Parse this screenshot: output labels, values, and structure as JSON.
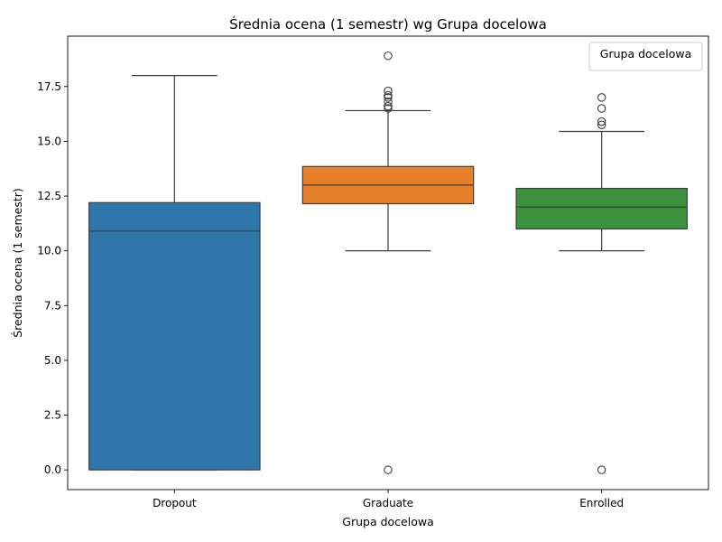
{
  "chart_data": {
    "type": "box",
    "title": "Średnia ocena (1 semestr) wg Grupa docelowa",
    "xlabel": "Grupa docelowa",
    "ylabel": "Średnia ocena (1 semestr)",
    "ylim": [
      -0.9,
      19.8
    ],
    "yticks": [
      "0.0",
      "2.5",
      "5.0",
      "7.5",
      "10.0",
      "12.5",
      "15.0",
      "17.5"
    ],
    "legend": {
      "title": "Grupa docelowa",
      "placement": "top-right"
    },
    "grid": false,
    "categories": [
      "Dropout",
      "Graduate",
      "Enrolled"
    ],
    "boxes": [
      {
        "name": "Dropout",
        "color": "#2f76ab",
        "whisker_low": 0.0,
        "q1": 0.0,
        "median": 10.9,
        "q3": 12.2,
        "whisker_high": 18.0,
        "outliers": []
      },
      {
        "name": "Graduate",
        "color": "#e6812a",
        "whisker_low": 10.0,
        "q1": 12.15,
        "median": 13.0,
        "q3": 13.85,
        "whisker_high": 16.4,
        "outliers": [
          0.0,
          16.5,
          16.6,
          16.8,
          17.0,
          17.1,
          17.3,
          18.9
        ]
      },
      {
        "name": "Enrolled",
        "color": "#3b923b",
        "whisker_low": 10.0,
        "q1": 11.0,
        "median": 12.0,
        "q3": 12.85,
        "whisker_high": 15.45,
        "outliers": [
          0.0,
          15.75,
          15.9,
          16.5,
          17.0
        ]
      }
    ]
  }
}
